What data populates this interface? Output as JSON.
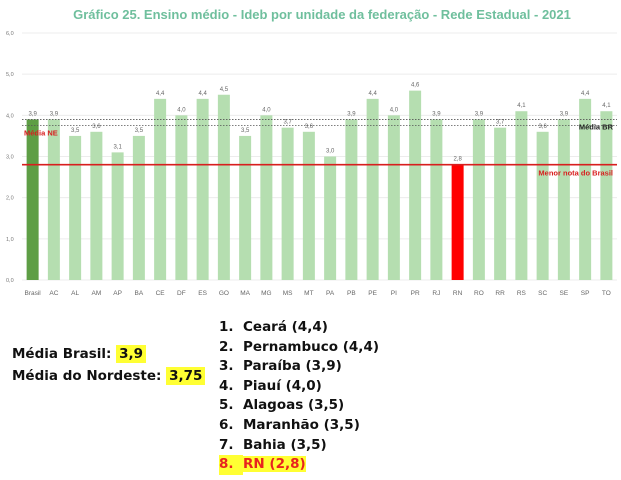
{
  "chart_data": {
    "type": "bar",
    "title": "Gráfico 25. Ensino médio - Ideb por unidade da federação - Rede Estadual - 2021",
    "categories": [
      "Brasil",
      "AC",
      "AL",
      "AM",
      "AP",
      "BA",
      "CE",
      "DF",
      "ES",
      "GO",
      "MA",
      "MG",
      "MS",
      "MT",
      "PA",
      "PB",
      "PE",
      "PI",
      "PR",
      "RJ",
      "RN",
      "RO",
      "RR",
      "RS",
      "SC",
      "SE",
      "SP",
      "TO"
    ],
    "values": [
      3.9,
      3.9,
      3.5,
      3.6,
      3.1,
      3.5,
      4.4,
      4.0,
      4.4,
      4.5,
      3.5,
      4.0,
      3.7,
      3.6,
      3.0,
      3.9,
      4.4,
      4.0,
      4.6,
      3.9,
      2.8,
      3.9,
      3.7,
      4.1,
      3.6,
      3.9,
      4.4,
      4.1
    ],
    "value_labels": [
      "3,9",
      "3,9",
      "3,5",
      "3,6",
      "3,1",
      "3,5",
      "4,4",
      "4,0",
      "4,4",
      "4,5",
      "3,5",
      "4,0",
      "3,7",
      "3,6",
      "3,0",
      "3,9",
      "4,4",
      "4,0",
      "4,6",
      "3,9",
      "2,8",
      "3,9",
      "3,7",
      "4,1",
      "3,6",
      "3,9",
      "4,4",
      "4,1"
    ],
    "yticks": [
      "0,0",
      "1,0",
      "2,0",
      "3,0",
      "4,0",
      "5,0",
      "6,0"
    ],
    "ylim": [
      0,
      6
    ],
    "reference_lines": [
      {
        "label": "Média NE",
        "value": 3.75
      },
      {
        "label": "Média BR",
        "value": 3.9
      },
      {
        "label": "Menor nota do Brasil",
        "value": 2.8
      }
    ],
    "colors": {
      "bar": "#b5deb0",
      "brasil": "#5e9e45",
      "rn": "#ff0000",
      "ref_line": "#d81e1e",
      "title": "#6fbf9d",
      "dotted": "#555555"
    }
  },
  "summary": {
    "brasil_label": "Média Brasil:",
    "brasil_value": "3,9",
    "nordeste_label": "Média do Nordeste:",
    "nordeste_value": "3,75"
  },
  "ranking": [
    {
      "num": "1.",
      "text": "Ceará (4,4)"
    },
    {
      "num": "2.",
      "text": "Pernambuco (4,4)"
    },
    {
      "num": "3.",
      "text": "Paraíba (3,9)"
    },
    {
      "num": "4.",
      "text": "Piauí (4,0)"
    },
    {
      "num": "5.",
      "text": "Alagoas (3,5)"
    },
    {
      "num": "6.",
      "text": "Maranhão (3,5)"
    },
    {
      "num": "7.",
      "text": "Bahia (3,5)"
    },
    {
      "num": "8.",
      "text": "RN (2,8)"
    }
  ]
}
